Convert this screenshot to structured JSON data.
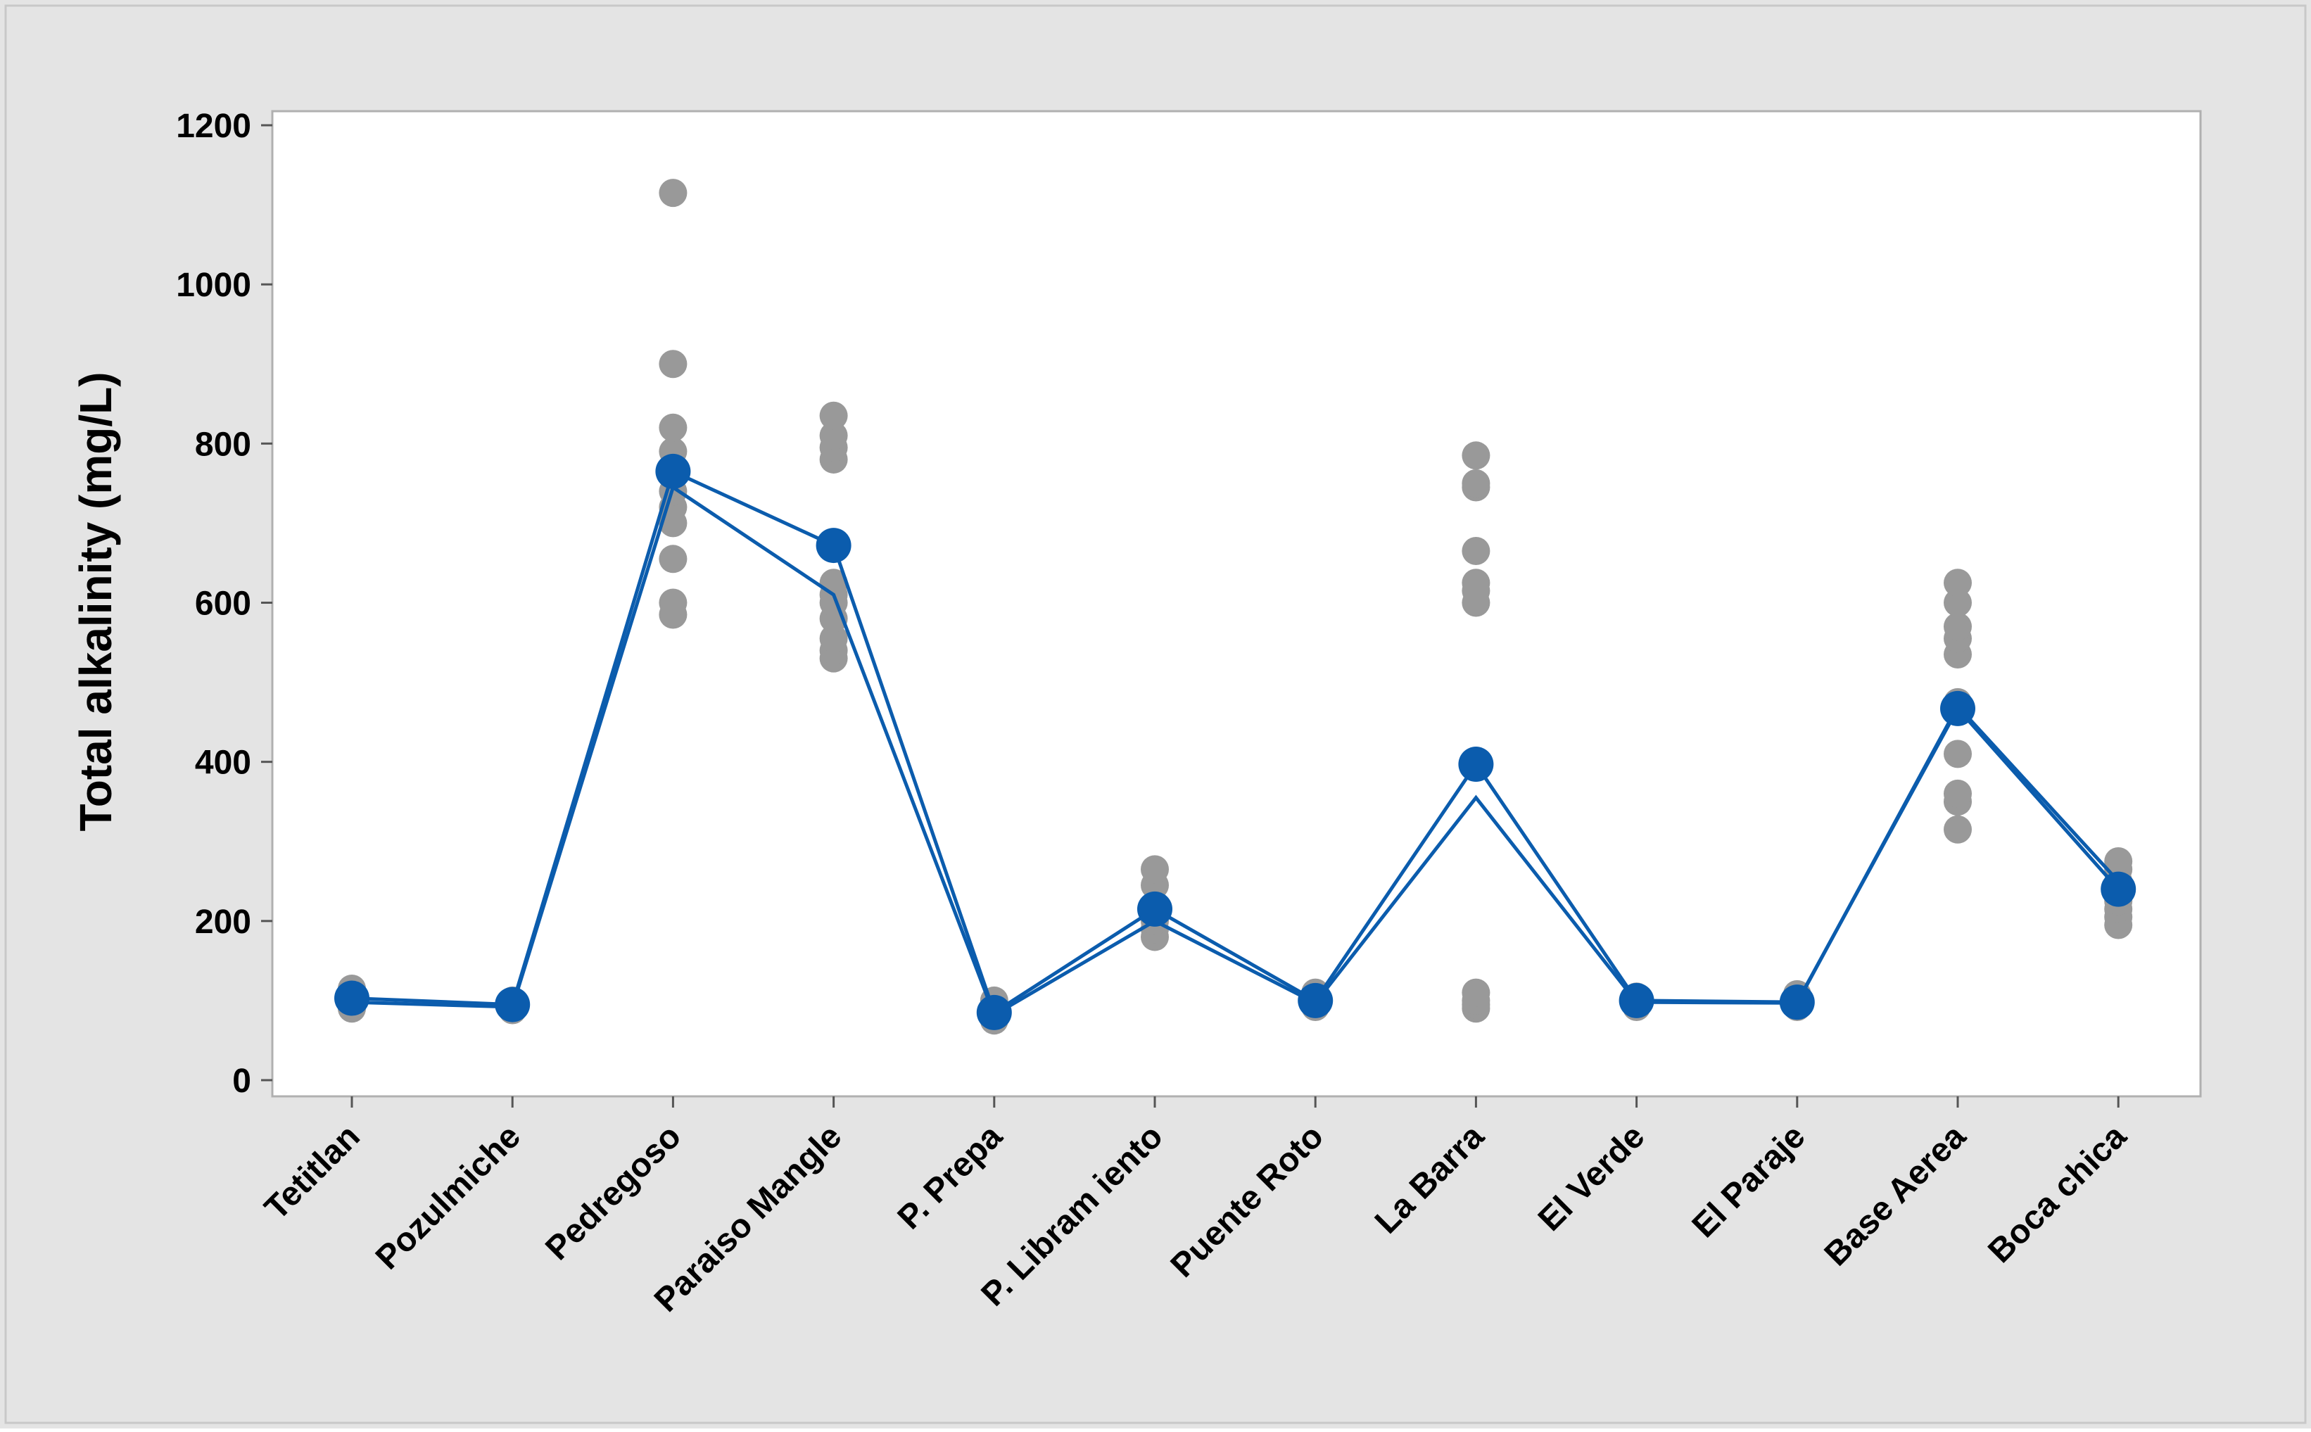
{
  "chart_data": {
    "type": "scatter",
    "title": "",
    "xlabel": "",
    "ylabel": "Total alkalinity (mg/L)",
    "ylim": [
      0,
      1200
    ],
    "yticks": [
      0,
      200,
      400,
      600,
      800,
      1000,
      1200
    ],
    "grid": false,
    "legend": "none",
    "categories": [
      "Tetitlan",
      "Pozulmiche",
      "Pedregoso",
      "Paraiso Mangle",
      "P. Prepa",
      "P. Libram iento",
      "Puente Roto",
      "La Barra",
      "El Verde",
      "El Paraje",
      "Base Aerea",
      "Boca chica"
    ],
    "individual_values": [
      [
        90,
        95,
        100,
        105,
        110,
        115
      ],
      [
        88,
        92,
        95,
        98,
        100
      ],
      [
        585,
        600,
        655,
        700,
        720,
        740,
        760,
        790,
        820,
        900,
        1115
      ],
      [
        530,
        540,
        555,
        580,
        600,
        610,
        625,
        780,
        795,
        810,
        835
      ],
      [
        75,
        80,
        85,
        90,
        95,
        100
      ],
      [
        180,
        190,
        200,
        220,
        245,
        265
      ],
      [
        92,
        98,
        105,
        110
      ],
      [
        90,
        95,
        100,
        110,
        600,
        615,
        625,
        665,
        745,
        750,
        785
      ],
      [
        92,
        96,
        100,
        105
      ],
      [
        92,
        96,
        100,
        108
      ],
      [
        315,
        350,
        360,
        410,
        465,
        475,
        535,
        555,
        570,
        600,
        625
      ],
      [
        195,
        205,
        215,
        225,
        235,
        250,
        265,
        275
      ]
    ],
    "series": [
      {
        "values": [
          103,
          95,
          765,
          672,
          85,
          215,
          100,
          397,
          100,
          98,
          467,
          240
        ],
        "marker": "filled-circle",
        "color": "#0b5cad"
      },
      {
        "values": [
          98,
          92,
          745,
          610,
          82,
          200,
          97,
          355,
          98,
          97,
          470,
          250
        ],
        "marker": "none",
        "color": "#0b5cad"
      }
    ],
    "point_color": "#999999",
    "frame_color": "#e4e4e4"
  }
}
